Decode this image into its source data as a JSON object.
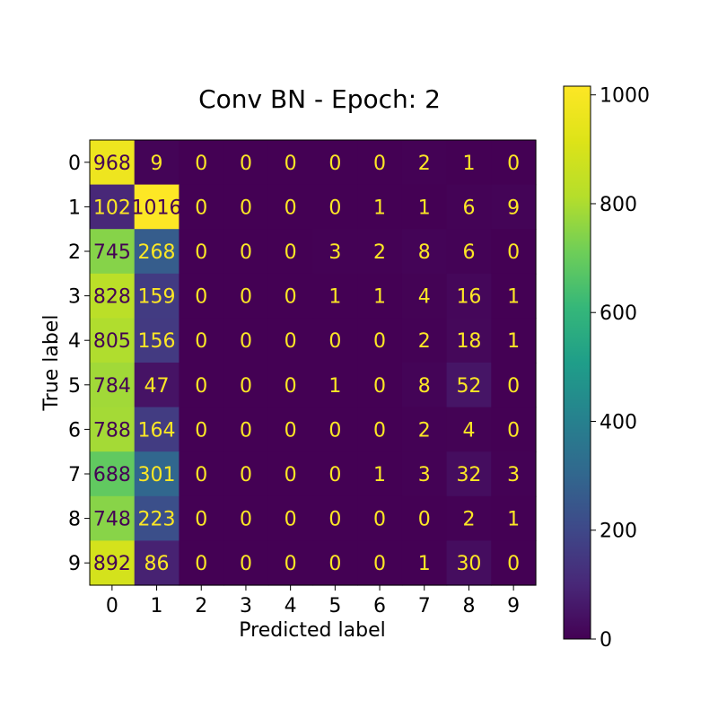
{
  "chart_data": {
    "type": "heatmap",
    "title": "Conv BN - Epoch: 2",
    "xlabel": "Predicted label",
    "ylabel": "True label",
    "x_categories": [
      "0",
      "1",
      "2",
      "3",
      "4",
      "5",
      "6",
      "7",
      "8",
      "9"
    ],
    "y_categories": [
      "0",
      "1",
      "2",
      "3",
      "4",
      "5",
      "6",
      "7",
      "8",
      "9"
    ],
    "matrix": [
      [
        968,
        9,
        0,
        0,
        0,
        0,
        0,
        2,
        1,
        0
      ],
      [
        102,
        1016,
        0,
        0,
        0,
        0,
        1,
        1,
        6,
        9
      ],
      [
        745,
        268,
        0,
        0,
        0,
        3,
        2,
        8,
        6,
        0
      ],
      [
        828,
        159,
        0,
        0,
        0,
        1,
        1,
        4,
        16,
        1
      ],
      [
        805,
        156,
        0,
        0,
        0,
        0,
        0,
        2,
        18,
        1
      ],
      [
        784,
        47,
        0,
        0,
        0,
        1,
        0,
        8,
        52,
        0
      ],
      [
        788,
        164,
        0,
        0,
        0,
        0,
        0,
        2,
        4,
        0
      ],
      [
        688,
        301,
        0,
        0,
        0,
        0,
        1,
        3,
        32,
        3
      ],
      [
        748,
        223,
        0,
        0,
        0,
        0,
        0,
        0,
        2,
        1
      ],
      [
        892,
        86,
        0,
        0,
        0,
        0,
        0,
        1,
        30,
        0
      ]
    ],
    "colormap": "viridis",
    "color_range": [
      0,
      1016
    ],
    "colorbar_ticks": [
      0,
      200,
      400,
      600,
      800,
      1000
    ],
    "colorbar_tick_labels": [
      "0",
      "200",
      "400",
      "600",
      "800",
      "1000"
    ],
    "cell_text_light": "#fde725",
    "cell_text_dark": "#440154"
  }
}
